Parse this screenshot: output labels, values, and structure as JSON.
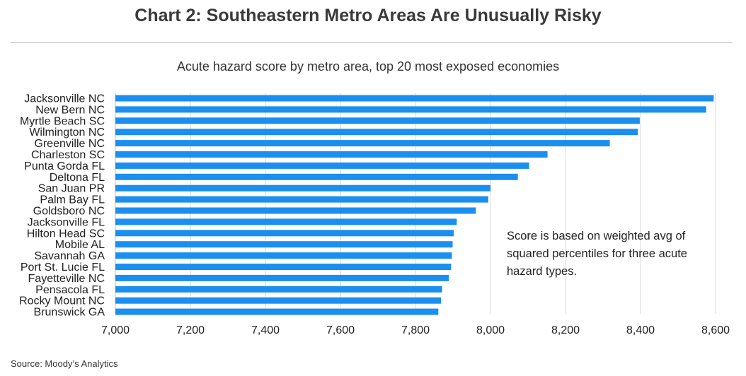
{
  "header": {
    "title": "Chart 2: Southeastern Metro Areas Are Unusually Risky",
    "subtitle": "Acute hazard score by metro area, top 20 most exposed economies"
  },
  "footer": {
    "source": "Source: Moody’s Analytics"
  },
  "annotation": {
    "lines": [
      "Score is based on weighted avg of",
      "squared percentiles for three acute",
      "hazard types."
    ]
  },
  "colors": {
    "bar": "#1b8ff0",
    "grid": "#d9d9d9",
    "axis": "#bfbfbf"
  },
  "chart_data": {
    "type": "bar",
    "orientation": "horizontal",
    "title": "Acute hazard score by metro area, top 20 most exposed economies",
    "xlabel": "",
    "ylabel": "",
    "xlim": [
      7000,
      8600
    ],
    "ticks": [
      7000,
      7200,
      7400,
      7600,
      7800,
      8000,
      8200,
      8400,
      8600
    ],
    "tick_labels": [
      "7,000",
      "7,200",
      "7,400",
      "7,600",
      "7,800",
      "8,000",
      "8,200",
      "8,400",
      "8,600"
    ],
    "grid": "vertical",
    "categories": [
      "Jacksonville NC",
      "New Bern NC",
      "Myrtle Beach SC",
      "Wilmington NC",
      "Greenville NC",
      "Charleston SC",
      "Punta Gorda FL",
      "Deltona FL",
      "San Juan PR",
      "Palm Bay FL",
      "Goldsboro NC",
      "Jacksonville FL",
      "Hilton Head SC",
      "Mobile AL",
      "Savannah GA",
      "Port St. Lucie FL",
      "Fayetteville NC",
      "Pensacola FL",
      "Rocky Mount NC",
      "Brunswick GA"
    ],
    "values": [
      8595,
      8575,
      8398,
      8393,
      8318,
      8152,
      8103,
      8073,
      8000,
      7994,
      7961,
      7910,
      7902,
      7899,
      7897,
      7895,
      7889,
      7871,
      7868,
      7861
    ]
  }
}
